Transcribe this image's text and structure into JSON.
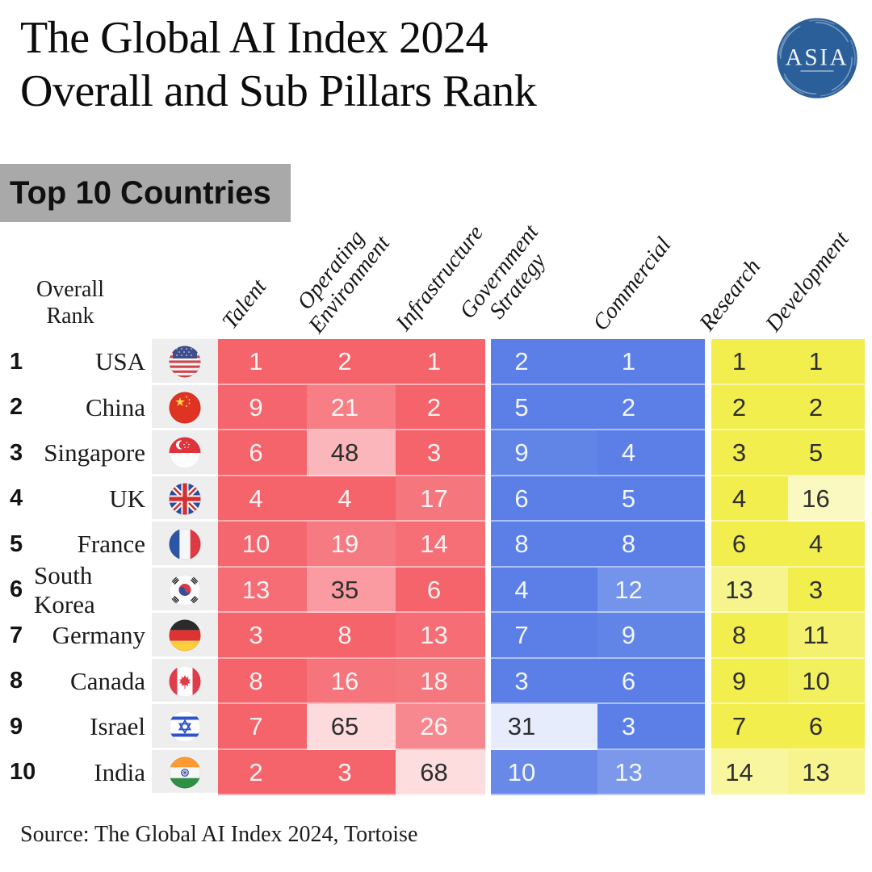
{
  "header": {
    "title_line1": "The Global AI Index 2024",
    "title_line2": "Overall and Sub Pillars Rank",
    "logo_text": "ASIA"
  },
  "badge": {
    "label": "Top 10 Countries"
  },
  "table_labels": {
    "rank_header_line1": "Overall",
    "rank_header_line2": "Rank"
  },
  "footer": {
    "source": "Source: The Global AI Index 2024, Tortoise"
  },
  "colors": {
    "red_pillar": "#f5636b",
    "blue_pillar": "#5b7fe6",
    "yellow_pillar": "#f2ee4e",
    "badge_background": "#a9a9a9",
    "flag_column_background": "#efeeef",
    "logo_blue": "#2b5f99"
  },
  "chart_data": {
    "type": "table",
    "title": "The Global AI Index 2024 Overall and Sub Pillars Rank",
    "subtitle": "Top 10 Countries",
    "row_header": "Overall Rank",
    "columns": [
      "Talent",
      "Operating Environment",
      "Infrastructure",
      "Government Strategy",
      "Commercial",
      "Research",
      "Development"
    ],
    "column_groups": [
      {
        "name": "talent-environment-infrastructure",
        "color": "#f5636b",
        "column_indexes": [
          0,
          1,
          2
        ]
      },
      {
        "name": "government-commercial",
        "color": "#5b7fe6",
        "column_indexes": [
          3,
          4
        ]
      },
      {
        "name": "research-development",
        "color": "#f2ee4e",
        "column_indexes": [
          5,
          6
        ]
      }
    ],
    "shading": "cell background fades toward white as rank number increases",
    "rows": [
      {
        "rank": 1,
        "country": "USA",
        "flag": "usa",
        "values": [
          1,
          2,
          1,
          2,
          1,
          1,
          1
        ]
      },
      {
        "rank": 2,
        "country": "China",
        "flag": "china",
        "values": [
          9,
          21,
          2,
          5,
          2,
          2,
          2
        ]
      },
      {
        "rank": 3,
        "country": "Singapore",
        "flag": "singapore",
        "values": [
          6,
          48,
          3,
          9,
          4,
          3,
          5
        ]
      },
      {
        "rank": 4,
        "country": "UK",
        "flag": "uk",
        "values": [
          4,
          4,
          17,
          6,
          5,
          4,
          16
        ]
      },
      {
        "rank": 5,
        "country": "France",
        "flag": "france",
        "values": [
          10,
          19,
          14,
          8,
          8,
          6,
          4
        ]
      },
      {
        "rank": 6,
        "country": "South Korea",
        "flag": "south_korea",
        "values": [
          13,
          35,
          6,
          4,
          12,
          13,
          3
        ]
      },
      {
        "rank": 7,
        "country": "Germany",
        "flag": "germany",
        "values": [
          3,
          8,
          13,
          7,
          9,
          8,
          11
        ]
      },
      {
        "rank": 8,
        "country": "Canada",
        "flag": "canada",
        "values": [
          8,
          16,
          18,
          3,
          6,
          9,
          10
        ]
      },
      {
        "rank": 9,
        "country": "Israel",
        "flag": "israel",
        "values": [
          7,
          65,
          26,
          31,
          3,
          7,
          6
        ]
      },
      {
        "rank": 10,
        "country": "India",
        "flag": "india",
        "values": [
          2,
          3,
          68,
          10,
          13,
          14,
          13
        ]
      }
    ]
  }
}
